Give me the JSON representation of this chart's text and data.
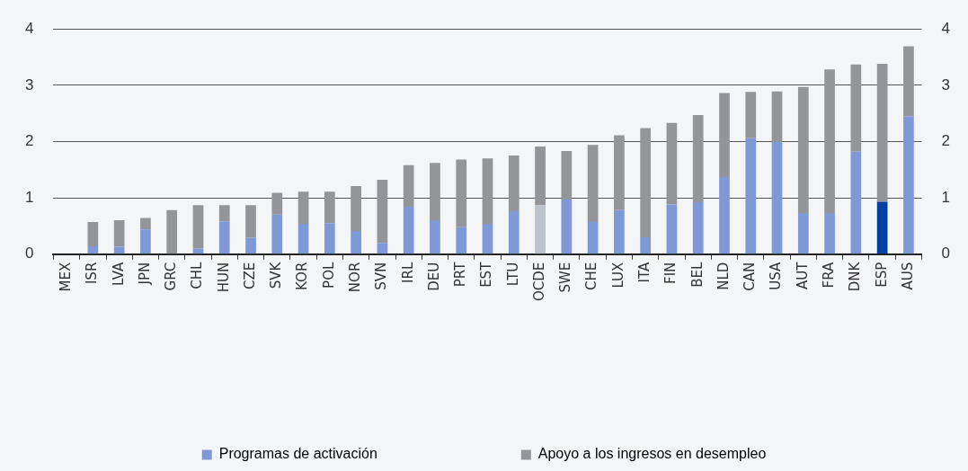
{
  "chart_data": {
    "type": "bar",
    "stacked": true,
    "categories": [
      "MEX",
      "ISR",
      "LVA",
      "JPN",
      "GRC",
      "CHL",
      "HUN",
      "CZE",
      "SVK",
      "KOR",
      "POL",
      "NOR",
      "SVN",
      "IRL",
      "DEU",
      "PRT",
      "EST",
      "LTU",
      "OCDE",
      "SWE",
      "CHE",
      "LUX",
      "ITA",
      "FIN",
      "BEL",
      "NLD",
      "CAN",
      "USA",
      "AUT",
      "FRA",
      "DNK",
      "ESP",
      "AUS"
    ],
    "series": [
      {
        "name": "Programas de activación",
        "color": "#7f98d6",
        "colors": [
          "#7f98d6",
          "#7f98d6",
          "#7f98d6",
          "#7f98d6",
          "#7f98d6",
          "#7f98d6",
          "#7f98d6",
          "#7f98d6",
          "#7f98d6",
          "#7f98d6",
          "#7f98d6",
          "#7f98d6",
          "#7f98d6",
          "#7f98d6",
          "#7f98d6",
          "#7f98d6",
          "#7f98d6",
          "#7f98d6",
          "#bcc3cb",
          "#7f98d6",
          "#7f98d6",
          "#7f98d6",
          "#7f98d6",
          "#7f98d6",
          "#7f98d6",
          "#7f98d6",
          "#7f98d6",
          "#7f98d6",
          "#7f98d6",
          "#7f98d6",
          "#7f98d6",
          "#0040a0",
          "#7f98d6"
        ],
        "values": [
          0,
          0.14,
          0.13,
          0.44,
          0,
          0.1,
          0.58,
          0.29,
          0.7,
          0.54,
          0.55,
          0.41,
          0.2,
          0.84,
          0.6,
          0.48,
          0.54,
          0.76,
          0.87,
          0.97,
          0.57,
          0.78,
          0.3,
          0.88,
          0.92,
          1.37,
          2.06,
          1.99,
          0.73,
          0.73,
          1.82,
          0.93,
          2.45
        ]
      },
      {
        "name": "Apoyo a los ingresos en desempleo",
        "color": "#939598",
        "values": [
          0,
          0.43,
          0.47,
          0.2,
          0.78,
          0.77,
          0.29,
          0.58,
          0.39,
          0.57,
          0.56,
          0.8,
          1.12,
          0.74,
          1.02,
          1.2,
          1.16,
          0.99,
          1.04,
          0.86,
          1.37,
          1.33,
          1.94,
          1.45,
          1.55,
          1.49,
          0.82,
          0.9,
          2.24,
          2.55,
          1.55,
          2.45,
          1.24
        ]
      }
    ],
    "ylim": [
      0,
      4
    ],
    "yticks": [
      0,
      1,
      2,
      3,
      4
    ],
    "y2lim": [
      0,
      4
    ],
    "y2ticks": [
      0,
      1,
      2,
      3,
      4
    ],
    "grid": "y",
    "legend": "bottom"
  }
}
